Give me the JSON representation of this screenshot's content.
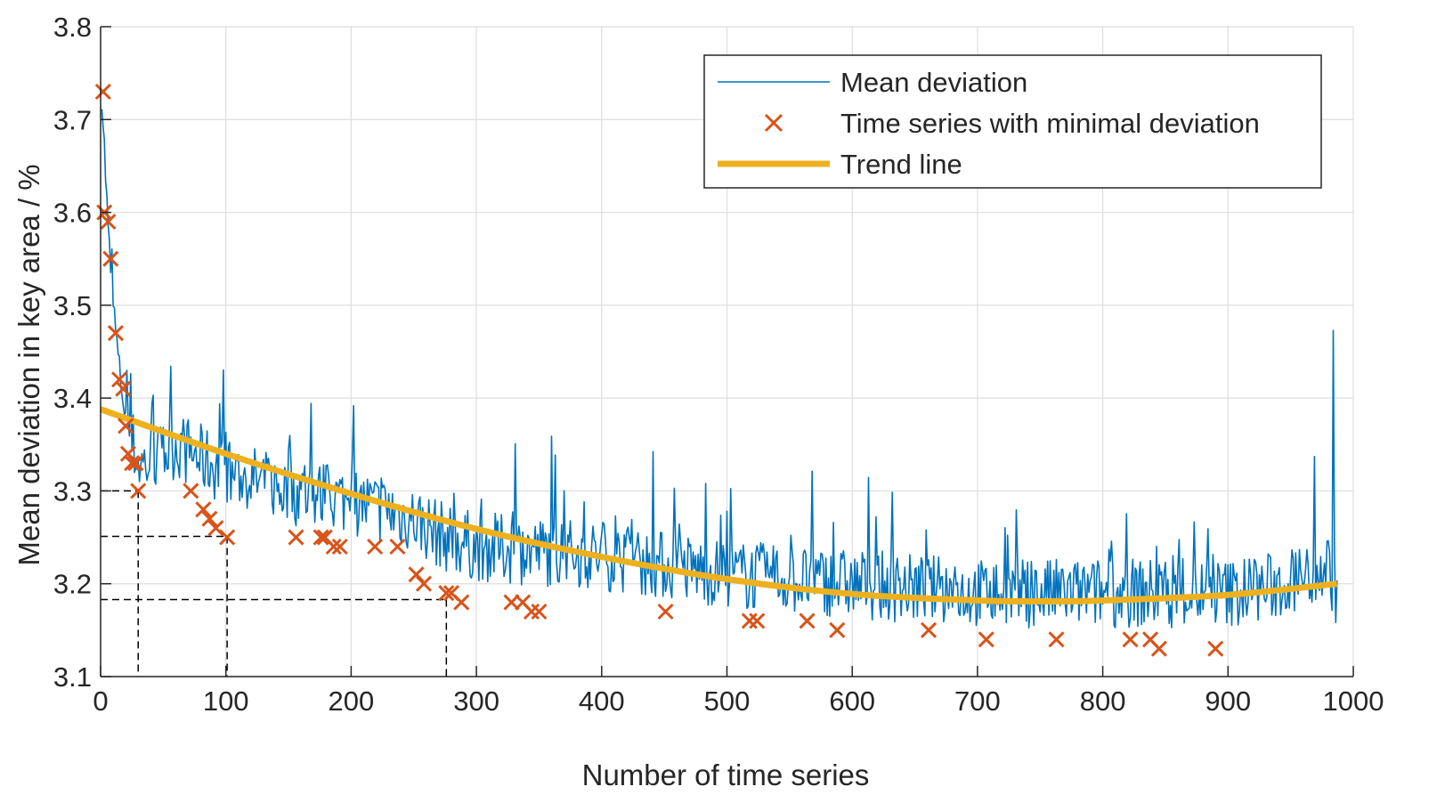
{
  "chart_data": {
    "type": "line",
    "xlabel": "Number of time series",
    "ylabel": "Mean deviation in key area / %",
    "xlim": [
      0,
      1000
    ],
    "ylim": [
      3.1,
      3.8
    ],
    "x_ticks": [
      0,
      100,
      200,
      300,
      400,
      500,
      600,
      700,
      800,
      900,
      1000
    ],
    "x_tick_labels": [
      "0",
      "100",
      "200",
      "300",
      "400",
      "500",
      "600",
      "700",
      "800",
      "900",
      "1000"
    ],
    "y_ticks": [
      3.1,
      3.2,
      3.3,
      3.4,
      3.5,
      3.6,
      3.7,
      3.8
    ],
    "y_tick_labels": [
      "3.1",
      "3.2",
      "3.3",
      "3.4",
      "3.5",
      "3.6",
      "3.7",
      "3.8"
    ],
    "grid": true,
    "legend_position": "top-right",
    "legend": [
      "Mean deviation",
      "Time series with minimal deviation",
      "Trend line"
    ],
    "series": [
      {
        "name": "Mean deviation",
        "kind": "noisy-line",
        "color": "#0072BD",
        "x_range": [
          1,
          987
        ],
        "description_points": {
          "x": [
            1,
            3,
            6,
            10,
            15,
            20,
            30,
            40,
            60,
            100,
            150,
            200,
            250,
            275,
            300,
            400,
            500,
            600,
            700,
            800,
            900,
            950,
            980,
            987
          ],
          "y": [
            3.73,
            3.67,
            3.58,
            3.5,
            3.43,
            3.38,
            3.33,
            3.33,
            3.35,
            3.32,
            3.3,
            3.29,
            3.27,
            3.25,
            3.24,
            3.23,
            3.21,
            3.2,
            3.19,
            3.19,
            3.19,
            3.2,
            3.22,
            3.19
          ]
        },
        "noise_amplitude": 0.075,
        "seed": 7
      },
      {
        "name": "Time series with minimal deviation",
        "kind": "markers",
        "marker": "x",
        "color": "#D95319",
        "x": [
          2,
          3,
          6,
          8,
          12,
          15,
          18,
          20,
          22,
          25,
          28,
          30,
          72,
          82,
          87,
          92,
          101,
          156,
          176,
          179,
          186,
          191,
          219,
          237,
          252,
          258,
          276,
          280,
          288,
          328,
          337,
          344,
          350,
          451,
          518,
          524,
          564,
          588,
          661,
          707,
          763,
          822,
          838,
          845,
          890
        ],
        "y": [
          3.73,
          3.6,
          3.59,
          3.55,
          3.47,
          3.42,
          3.41,
          3.37,
          3.34,
          3.33,
          3.33,
          3.3,
          3.3,
          3.28,
          3.27,
          3.26,
          3.25,
          3.25,
          3.25,
          3.25,
          3.24,
          3.24,
          3.24,
          3.24,
          3.21,
          3.2,
          3.19,
          3.19,
          3.18,
          3.18,
          3.18,
          3.17,
          3.17,
          3.17,
          3.16,
          3.16,
          3.16,
          3.15,
          3.15,
          3.14,
          3.14,
          3.14,
          3.14,
          3.13,
          3.13
        ]
      },
      {
        "name": "Trend line",
        "kind": "smooth-line",
        "color": "#EDB120",
        "x": [
          0,
          100,
          200,
          300,
          400,
          500,
          600,
          700,
          760,
          800,
          900,
          987
        ],
        "y": [
          3.388,
          3.34,
          3.297,
          3.259,
          3.229,
          3.205,
          3.189,
          3.182,
          3.181,
          3.182,
          3.188,
          3.2
        ]
      }
    ],
    "guide_lines": [
      {
        "x": 30,
        "y": 3.3
      },
      {
        "x": 101,
        "y": 3.251
      },
      {
        "x": 276,
        "y": 3.183
      }
    ]
  }
}
